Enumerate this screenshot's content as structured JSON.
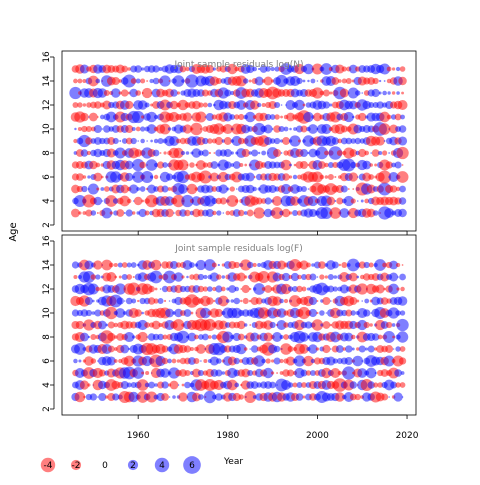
{
  "chart_data": {
    "type": "scatter",
    "shared_axes": {
      "xlabel": "Year",
      "ylabel": "Age",
      "xlim": [
        1943,
        2022
      ],
      "ylim": [
        1.5,
        16.5
      ]
    },
    "colors": {
      "negative": "#ff0000",
      "positive": "#0000ff",
      "panel_title": "#808080",
      "axis": "#000000"
    },
    "bubble_legend": {
      "position": "bottom-left",
      "sizes": [
        {
          "label": "-4",
          "value": -4
        },
        {
          "label": "-2",
          "value": -2
        },
        {
          "label": "0",
          "value": 0
        },
        {
          "label": "2",
          "value": 2
        },
        {
          "label": "4",
          "value": 4
        },
        {
          "label": "6",
          "value": 6
        }
      ]
    },
    "panels": [
      {
        "title": "Joint sample residuals log(N)",
        "x": {
          "ticks": [
            1960,
            1980,
            2000,
            2020
          ],
          "tick_labels_shown": false
        },
        "y": {
          "ticks": [
            2,
            4,
            6,
            8,
            10,
            12,
            14,
            16
          ],
          "tick_labels": [
            "2",
            "4",
            "6",
            "8",
            "10",
            "12",
            "14",
            "16"
          ]
        },
        "data": {
          "years": [
            1946,
            2019
          ],
          "ages": [
            3,
            15
          ],
          "seed": 11,
          "encoding": "bubble area proportional to |residual|; red = negative, blue = positive"
        }
      },
      {
        "title": "Joint sample residuals log(F)",
        "x": {
          "ticks": [
            1960,
            1980,
            2000,
            2020
          ],
          "tick_labels": [
            "1960",
            "1980",
            "2000",
            "2020"
          ],
          "tick_labels_shown": true
        },
        "y": {
          "ticks": [
            2,
            4,
            6,
            8,
            10,
            12,
            14,
            16
          ],
          "tick_labels": [
            "2",
            "4",
            "6",
            "8",
            "10",
            "12",
            "14",
            "16"
          ]
        },
        "data": {
          "years": [
            1946,
            2019
          ],
          "ages": [
            3,
            14
          ],
          "seed": 29,
          "encoding": "bubble area proportional to |residual|; red = negative, blue = positive"
        }
      }
    ]
  }
}
